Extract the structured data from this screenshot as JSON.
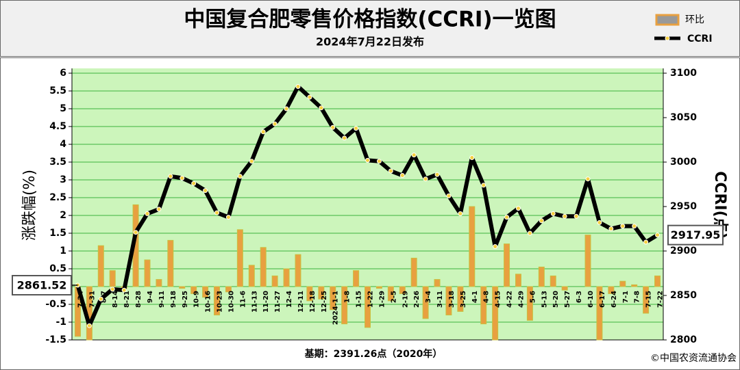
{
  "chart_data": {
    "type": "bar-line",
    "title": "中国复合肥零售价格指数(CCRI)一览图",
    "subtitle": "2024年7月22日发布",
    "y_label": "涨跌幅(%)",
    "y2_label": "CCRI(点)",
    "footnote": "基期：2391.26点（2020年）",
    "source": "©中国农资流通协会",
    "categories": [
      "7-24",
      "7-31",
      "8-7",
      "8-14",
      "8-21",
      "8-28",
      "9-4",
      "9-11",
      "9-18",
      "9-25",
      "10-9",
      "10-16",
      "10-23",
      "10-30",
      "11-6",
      "11-13",
      "11-20",
      "11-27",
      "12-4",
      "12-11",
      "12-18",
      "12-25",
      "2024-1-1",
      "1-8",
      "1-15",
      "1-22",
      "1-29",
      "2-5",
      "2-19",
      "2-26",
      "3-4",
      "3-11",
      "3-18",
      "3-25",
      "4-1",
      "4-8",
      "4-15",
      "4-22",
      "4-29",
      "5-6",
      "5-13",
      "5-20",
      "5-27",
      "6-3",
      "6-10",
      "6-17",
      "6-24",
      "7-1",
      "7-8",
      "7-15",
      "7-22"
    ],
    "series": [
      {
        "name": "环比",
        "type": "bar",
        "axis": "y",
        "color": "#e8a040",
        "values": [
          -1.4,
          -1.5,
          1.15,
          0.45,
          -0.05,
          2.3,
          0.75,
          0.2,
          1.3,
          -0.05,
          -0.2,
          -0.3,
          -0.8,
          -0.15,
          1.6,
          0.6,
          1.1,
          0.3,
          0.5,
          0.9,
          -0.4,
          -0.35,
          -0.65,
          -1.05,
          0.45,
          -1.15,
          -0.05,
          -0.4,
          -0.2,
          0.8,
          -0.9,
          0.2,
          -0.8,
          -0.7,
          2.25,
          -1.05,
          -1.5,
          1.2,
          0.35,
          -0.95,
          0.55,
          0.3,
          -0.1,
          0,
          1.45,
          -1.5,
          -0.2,
          0.15,
          0.05,
          -0.75,
          0.3
        ]
      },
      {
        "name": "CCRI",
        "type": "line",
        "axis": "y2",
        "color": "#000000",
        "values": [
          2861.52,
          2816,
          2846,
          2857,
          2856,
          2921,
          2942,
          2947,
          2984,
          2982,
          2976,
          2968,
          2943,
          2938,
          2984,
          3001,
          3034,
          3043,
          3060,
          3085,
          3073,
          3061,
          3039,
          3027,
          3038,
          3002,
          3001,
          2990,
          2985,
          3008,
          2981,
          2986,
          2962,
          2942,
          3005,
          2974,
          2905,
          2938,
          2948,
          2920,
          2934,
          2942,
          2939,
          2939,
          2981,
          2932,
          2925,
          2928,
          2928,
          2910,
          2917.95
        ]
      }
    ],
    "ylim": [
      -1.5,
      6
    ],
    "yticks": [
      -1.5,
      -1,
      -0.5,
      0,
      0.5,
      1,
      1.5,
      2,
      2.5,
      3,
      3.5,
      4,
      4.5,
      5,
      5.5,
      6
    ],
    "y2lim": [
      2800,
      3100
    ],
    "y2ticks": [
      2800,
      2850,
      2900,
      2950,
      3000,
      3050,
      3100
    ],
    "grid": true
  }
}
